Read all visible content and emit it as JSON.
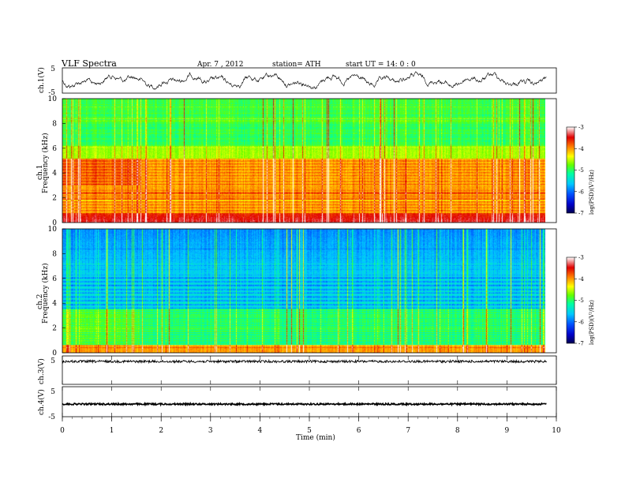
{
  "header": {
    "title": "VLF  Spectra",
    "date": "Apr. 7  , 2012",
    "station": "station= ATH",
    "start": "start  UT  =    14: 0  : 0"
  },
  "colors": {
    "bg": "#ffffff",
    "trace": "#000000",
    "colormap": [
      "#000050",
      "#0000c8",
      "#0050ff",
      "#00c8ff",
      "#00ffa0",
      "#64ff00",
      "#ffff00",
      "#ff8000",
      "#e00000",
      "#ffffff"
    ]
  },
  "chart_data": [
    {
      "type": "line",
      "ylabel": "ch.1(V)",
      "ylim": [
        -5,
        5
      ],
      "yticks": [
        "5",
        "-5"
      ],
      "x_range_min": [
        0,
        9.8
      ],
      "style": "noisy-waveform"
    },
    {
      "type": "heatmap",
      "ylabel_channel": "ch.1",
      "ylabel": "Frequency  (kHz)",
      "yticks": [
        "10",
        "8",
        "6",
        "4",
        "2",
        "0"
      ],
      "ylim": [
        0,
        10
      ],
      "colorbar": {
        "label": "log(PSD)(V²/Hz)",
        "ticks": [
          "-3",
          "-4",
          "-5",
          "-6",
          "-7"
        ],
        "range": [
          -7,
          -3
        ]
      },
      "level": "high"
    },
    {
      "type": "heatmap",
      "ylabel_channel": "ch.2",
      "ylabel": "Frequency  (kHz)",
      "yticks": [
        "10",
        "8",
        "6",
        "4",
        "2",
        "0"
      ],
      "ylim": [
        0,
        10
      ],
      "colorbar": {
        "label": "log(PSD)(V²/Hz)",
        "ticks": [
          "-3",
          "-4",
          "-5",
          "-6",
          "-7"
        ],
        "range": [
          -7,
          -3
        ]
      },
      "level": "low"
    },
    {
      "type": "line",
      "ylabel": "ch.3(V)",
      "ylim": [
        -5,
        5
      ],
      "yticks": [
        "5"
      ],
      "style": "flat-noise"
    },
    {
      "type": "line",
      "ylabel": "ch.4(V)",
      "ylim": [
        -5,
        5
      ],
      "yticks": [
        "5",
        "-5"
      ],
      "style": "flat-noise"
    }
  ],
  "xaxis": {
    "label": "Time  (min)",
    "ticks": [
      "0",
      "1",
      "2",
      "3",
      "4",
      "5",
      "6",
      "7",
      "8",
      "9",
      "10"
    ],
    "range": [
      0,
      10
    ]
  }
}
